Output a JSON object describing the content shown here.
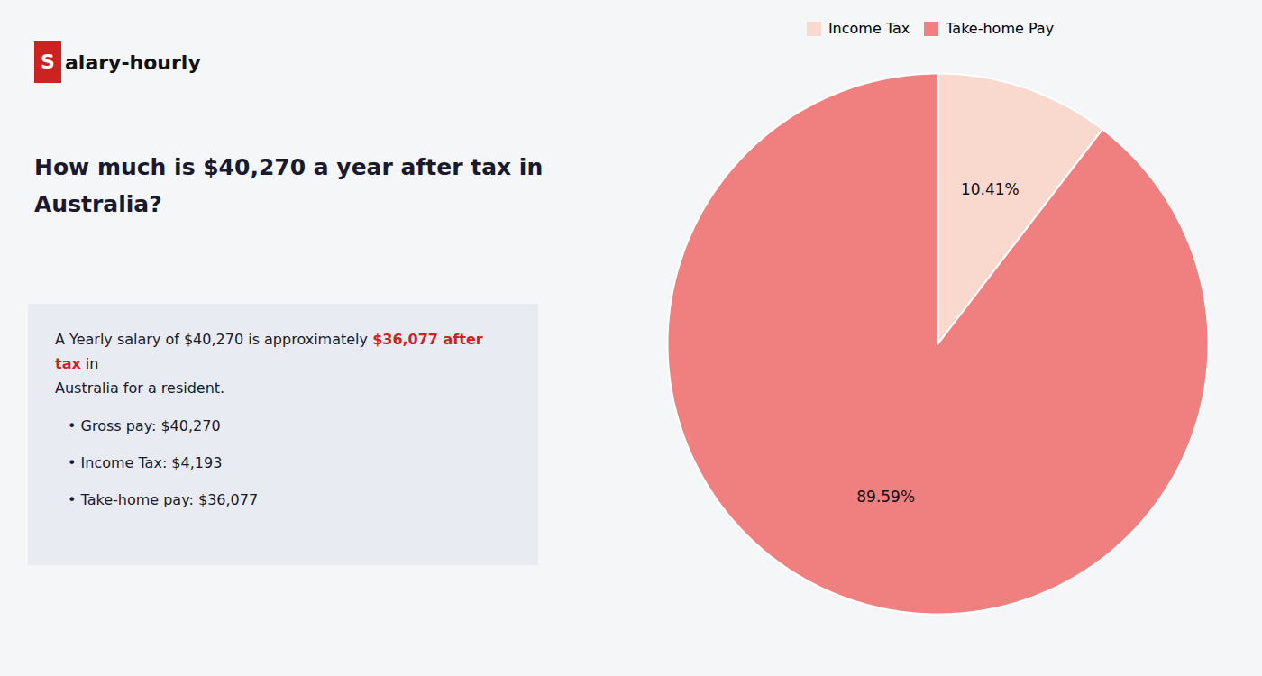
{
  "chart_data": {
    "type": "pie",
    "title": "How much is $40,270 a year after tax in\nAustralia?",
    "annotations": [
      [
        {
          "text": "S",
          "color": "#cc2222"
        },
        {
          "text": "alary-hourly"
        }
      ],
      [
        {
          "text": "A Yearly salary of $40,270 is approximately "
        },
        {
          "text": "$36,077 after tax",
          "color": "#cc2222"
        },
        {
          "text": " in"
        }
      ],
      [
        {
          "text": "Australia for a resident."
        }
      ],
      [
        {
          "text": "• Gross pay: $40,270"
        }
      ],
      [
        {
          "text": "• Income Tax: $4,193"
        }
      ],
      [
        {
          "text": "• Take-home pay: $36,077"
        }
      ]
    ],
    "categories": [
      "Income Tax",
      "Take-home Pay"
    ],
    "values": [
      10.41,
      89.59
    ],
    "value_labels": [
      "10.41%",
      "89.59%"
    ],
    "colors": [
      "#f9d8ce",
      "#f08080"
    ],
    "data_labels": true,
    "legend": "top"
  }
}
